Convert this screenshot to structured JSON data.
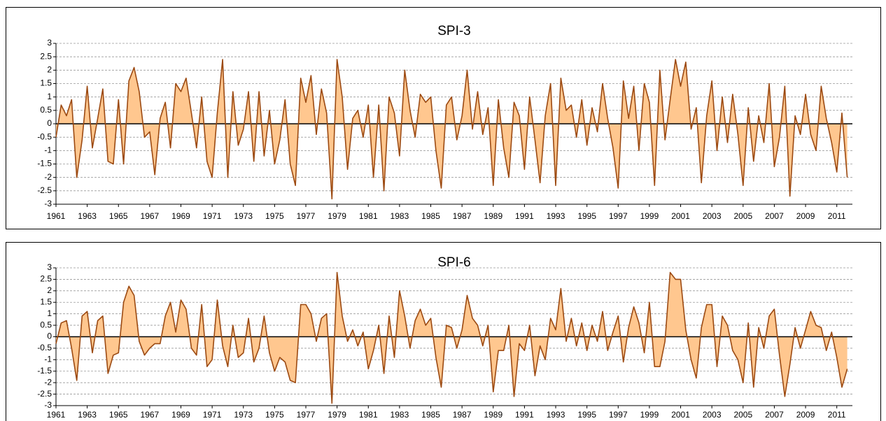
{
  "chart_data": [
    {
      "type": "area",
      "title": "SPI-3",
      "color": "#9c4a12",
      "fill_color": "#ffc78f",
      "grid": true,
      "xlim": [
        1961,
        2012
      ],
      "xticks": [
        1961,
        1963,
        1965,
        1967,
        1969,
        1971,
        1973,
        1975,
        1977,
        1979,
        1981,
        1983,
        1985,
        1987,
        1989,
        1991,
        1993,
        1995,
        1997,
        1999,
        2001,
        2003,
        2005,
        2007,
        2009,
        2011
      ],
      "ylim": [
        -3,
        3
      ],
      "yticks": [
        3,
        2.5,
        2,
        1.5,
        1,
        0.5,
        0,
        -0.5,
        -1,
        -1.5,
        -2,
        -2.5,
        -3
      ],
      "x": [
        1961,
        1961.33,
        1961.67,
        1962,
        1962.33,
        1962.67,
        1963,
        1963.33,
        1963.67,
        1964,
        1964.33,
        1964.67,
        1965,
        1965.33,
        1965.67,
        1966,
        1966.33,
        1966.67,
        1967,
        1967.33,
        1967.67,
        1968,
        1968.33,
        1968.67,
        1969,
        1969.33,
        1969.67,
        1970,
        1970.33,
        1970.67,
        1971,
        1971.33,
        1971.67,
        1972,
        1972.33,
        1972.67,
        1973,
        1973.33,
        1973.67,
        1974,
        1974.33,
        1974.67,
        1975,
        1975.33,
        1975.67,
        1976,
        1976.33,
        1976.67,
        1977,
        1977.33,
        1977.67,
        1978,
        1978.33,
        1978.67,
        1979,
        1979.33,
        1979.67,
        1980,
        1980.33,
        1980.67,
        1981,
        1981.33,
        1981.67,
        1982,
        1982.33,
        1982.67,
        1983,
        1983.33,
        1983.67,
        1984,
        1984.33,
        1984.67,
        1985,
        1985.33,
        1985.67,
        1986,
        1986.33,
        1986.67,
        1987,
        1987.33,
        1987.67,
        1988,
        1988.33,
        1988.67,
        1989,
        1989.33,
        1989.67,
        1990,
        1990.33,
        1990.67,
        1991,
        1991.33,
        1991.67,
        1992,
        1992.33,
        1992.67,
        1993,
        1993.33,
        1993.67,
        1994,
        1994.33,
        1994.67,
        1995,
        1995.33,
        1995.67,
        1996,
        1996.33,
        1996.67,
        1997,
        1997.33,
        1997.67,
        1998,
        1998.33,
        1998.67,
        1999,
        1999.33,
        1999.67,
        2000,
        2000.33,
        2000.67,
        2001,
        2001.33,
        2001.67,
        2002,
        2002.33,
        2002.67,
        2003,
        2003.33,
        2003.67,
        2004,
        2004.33,
        2004.67,
        2005,
        2005.33,
        2005.67,
        2006,
        2006.33,
        2006.67,
        2007,
        2007.33,
        2007.67,
        2008,
        2008.33,
        2008.67,
        2009,
        2009.33,
        2009.67,
        2010,
        2010.33,
        2010.67,
        2011,
        2011.33,
        2011.67
      ],
      "values": [
        -0.5,
        0.7,
        0.3,
        0.9,
        -2.0,
        -0.6,
        1.4,
        -0.9,
        0.2,
        1.3,
        -1.4,
        -1.5,
        0.9,
        -1.5,
        1.6,
        2.1,
        1.2,
        -0.5,
        -0.3,
        -1.9,
        0.2,
        0.8,
        -0.9,
        1.5,
        1.2,
        1.7,
        0.4,
        -0.9,
        1.0,
        -1.4,
        -2.0,
        0.4,
        2.4,
        -2.0,
        1.2,
        -0.8,
        -0.2,
        1.2,
        -1.4,
        1.2,
        -1.2,
        0.5,
        -1.5,
        -0.6,
        0.9,
        -1.5,
        -2.3,
        1.7,
        0.8,
        1.8,
        -0.4,
        1.3,
        0.4,
        -2.8,
        2.4,
        1.0,
        -1.7,
        0.2,
        0.5,
        -0.5,
        0.7,
        -2.0,
        0.7,
        -2.5,
        1.0,
        0.4,
        -1.2,
        2.0,
        0.5,
        -0.5,
        1.1,
        0.8,
        1.0,
        -1.0,
        -2.4,
        0.7,
        1.0,
        -0.6,
        0.3,
        2.0,
        -0.2,
        1.2,
        -0.4,
        0.6,
        -2.3,
        0.9,
        -0.9,
        -2.0,
        0.8,
        0.3,
        -1.7,
        1.0,
        -0.6,
        -2.2,
        0.3,
        1.5,
        -2.3,
        1.7,
        0.5,
        0.7,
        -0.5,
        0.9,
        -0.8,
        0.6,
        -0.3,
        1.5,
        0.2,
        -0.9,
        -2.4,
        1.6,
        0.2,
        1.4,
        -1.0,
        1.5,
        0.8,
        -2.3,
        2.0,
        -0.6,
        0.9,
        2.4,
        1.4,
        2.3,
        -0.2,
        0.6,
        -2.2,
        0.3,
        1.6,
        -1.0,
        1.0,
        -0.7,
        1.1,
        -0.4,
        -2.3,
        0.6,
        -1.4,
        0.3,
        -0.7,
        1.5,
        -1.6,
        -0.5,
        1.4,
        -2.7,
        0.3,
        -0.4,
        1.1,
        -0.4,
        -1.0,
        1.4,
        0.2,
        -0.7,
        -1.8,
        0.4,
        -2.0
      ]
    },
    {
      "type": "area",
      "title": "SPI-6",
      "color": "#9c4a12",
      "fill_color": "#ffc78f",
      "grid": true,
      "xlim": [
        1961,
        2012
      ],
      "xticks": [
        1961,
        1963,
        1965,
        1967,
        1969,
        1971,
        1973,
        1975,
        1977,
        1979,
        1981,
        1983,
        1985,
        1987,
        1989,
        1991,
        1993,
        1995,
        1997,
        1999,
        2001,
        2003,
        2005,
        2007,
        2009,
        2011
      ],
      "ylim": [
        -3,
        3
      ],
      "yticks": [
        3,
        2.5,
        2,
        1.5,
        1,
        0.5,
        0,
        -0.5,
        -1,
        -1.5,
        -2,
        -2.5,
        -3
      ],
      "x": [
        1961,
        1961.33,
        1961.67,
        1962,
        1962.33,
        1962.67,
        1963,
        1963.33,
        1963.67,
        1964,
        1964.33,
        1964.67,
        1965,
        1965.33,
        1965.67,
        1966,
        1966.33,
        1966.67,
        1967,
        1967.33,
        1967.67,
        1968,
        1968.33,
        1968.67,
        1969,
        1969.33,
        1969.67,
        1970,
        1970.33,
        1970.67,
        1971,
        1971.33,
        1971.67,
        1972,
        1972.33,
        1972.67,
        1973,
        1973.33,
        1973.67,
        1974,
        1974.33,
        1974.67,
        1975,
        1975.33,
        1975.67,
        1976,
        1976.33,
        1976.67,
        1977,
        1977.33,
        1977.67,
        1978,
        1978.33,
        1978.67,
        1979,
        1979.33,
        1979.67,
        1980,
        1980.33,
        1980.67,
        1981,
        1981.33,
        1981.67,
        1982,
        1982.33,
        1982.67,
        1983,
        1983.33,
        1983.67,
        1984,
        1984.33,
        1984.67,
        1985,
        1985.33,
        1985.67,
        1986,
        1986.33,
        1986.67,
        1987,
        1987.33,
        1987.67,
        1988,
        1988.33,
        1988.67,
        1989,
        1989.33,
        1989.67,
        1990,
        1990.33,
        1990.67,
        1991,
        1991.33,
        1991.67,
        1992,
        1992.33,
        1992.67,
        1993,
        1993.33,
        1993.67,
        1994,
        1994.33,
        1994.67,
        1995,
        1995.33,
        1995.67,
        1996,
        1996.33,
        1996.67,
        1997,
        1997.33,
        1997.67,
        1998,
        1998.33,
        1998.67,
        1999,
        1999.33,
        1999.67,
        2000,
        2000.33,
        2000.67,
        2001,
        2001.33,
        2001.67,
        2002,
        2002.33,
        2002.67,
        2003,
        2003.33,
        2003.67,
        2004,
        2004.33,
        2004.67,
        2005,
        2005.33,
        2005.67,
        2006,
        2006.33,
        2006.67,
        2007,
        2007.33,
        2007.67,
        2008,
        2008.33,
        2008.67,
        2009,
        2009.33,
        2009.67,
        2010,
        2010.33,
        2010.67,
        2011,
        2011.33,
        2011.67
      ],
      "values": [
        -0.3,
        0.6,
        0.7,
        -0.5,
        -1.9,
        0.9,
        1.1,
        -0.7,
        0.7,
        0.9,
        -1.6,
        -0.8,
        -0.7,
        1.5,
        2.2,
        1.8,
        -0.2,
        -0.8,
        -0.5,
        -0.3,
        -0.3,
        0.9,
        1.5,
        0.2,
        1.6,
        1.2,
        -0.5,
        -0.8,
        1.4,
        -1.3,
        -1.0,
        1.6,
        -0.4,
        -1.3,
        0.5,
        -0.9,
        -0.7,
        0.8,
        -1.1,
        -0.5,
        0.9,
        -0.7,
        -1.5,
        -0.9,
        -1.1,
        -1.9,
        -2.0,
        1.4,
        1.4,
        1.0,
        -0.2,
        0.8,
        1.0,
        -2.9,
        2.8,
        0.9,
        -0.2,
        0.3,
        -0.4,
        0.2,
        -1.4,
        -0.6,
        0.5,
        -1.6,
        0.9,
        -0.9,
        2.0,
        0.9,
        -0.5,
        0.7,
        1.2,
        0.5,
        0.8,
        -0.9,
        -2.2,
        0.5,
        0.4,
        -0.5,
        0.3,
        1.8,
        0.8,
        0.5,
        -0.4,
        0.5,
        -2.4,
        -0.6,
        -0.6,
        0.5,
        -2.6,
        -0.3,
        -0.6,
        0.5,
        -1.7,
        -0.4,
        -1.0,
        0.8,
        0.3,
        2.1,
        -0.2,
        0.8,
        -0.4,
        0.6,
        -0.6,
        0.5,
        -0.2,
        1.1,
        -0.6,
        0.2,
        0.9,
        -1.1,
        0.4,
        1.3,
        0.6,
        -0.7,
        1.5,
        -1.3,
        -1.3,
        -0.2,
        2.8,
        2.5,
        2.5,
        0.3,
        -1.0,
        -1.8,
        0.4,
        1.4,
        1.4,
        -1.3,
        0.9,
        0.5,
        -0.6,
        -1.0,
        -2.0,
        0.6,
        -2.2,
        0.4,
        -0.5,
        0.9,
        1.2,
        -0.8,
        -2.6,
        -1.2,
        0.4,
        -0.5,
        0.3,
        1.1,
        0.5,
        0.4,
        -0.6,
        0.2,
        -0.9,
        -2.2,
        -1.4
      ]
    }
  ]
}
